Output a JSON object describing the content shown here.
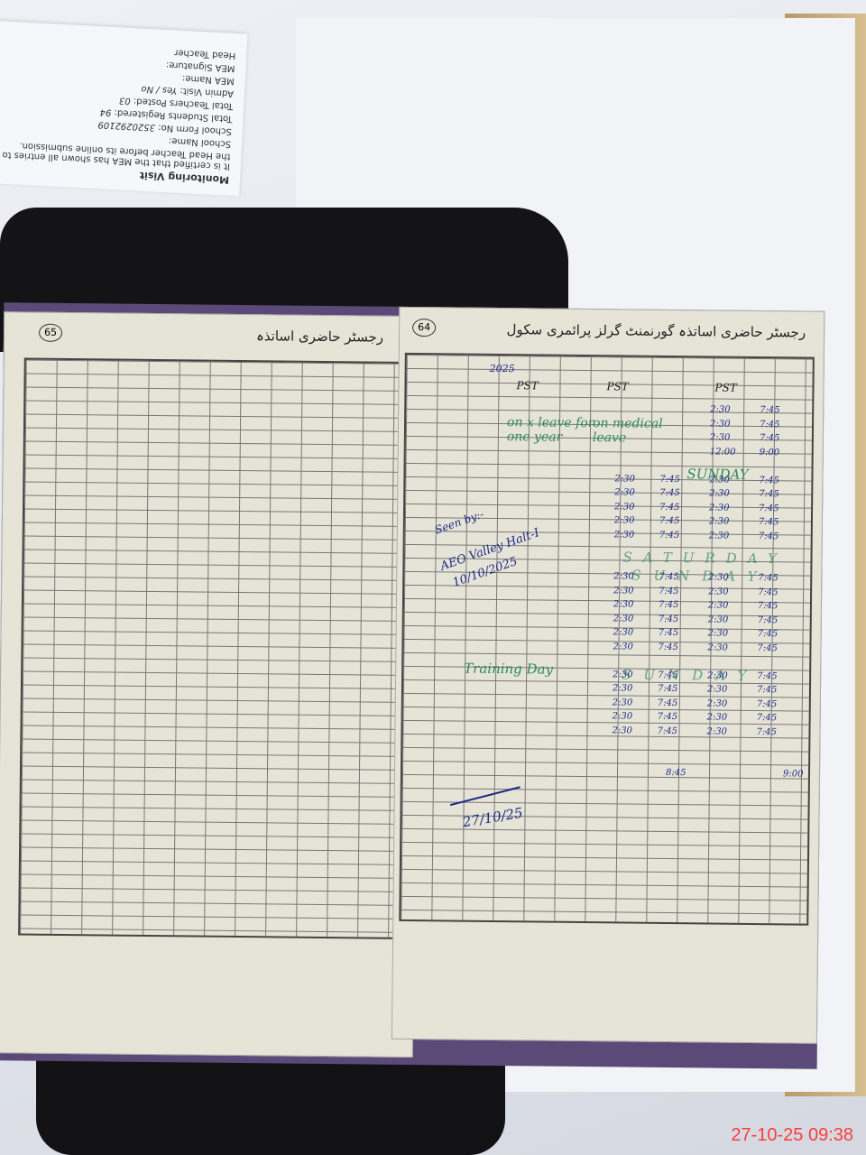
{
  "photo": {
    "timestamp": "27-10-25  09:38",
    "slip": {
      "heading": "Monitoring Visit",
      "certification": "It is certified that the MEA has shown all entries to the Head Teacher before its online submission.",
      "fields": [
        {
          "label": "School Name:",
          "value": ""
        },
        {
          "label": "School Form No:",
          "value": "3520292109"
        },
        {
          "label": "Total Students Registered:",
          "value": "94"
        },
        {
          "label": "Total Teachers Posted:",
          "value": "03"
        },
        {
          "label": "Admin Visit:",
          "value": "Yes / No"
        },
        {
          "label": "MEA Name:",
          "value": ""
        },
        {
          "label": "MEA Signature:",
          "value": ""
        },
        {
          "label": "Head Teacher",
          "value": ""
        }
      ]
    },
    "register": {
      "left_page_number": "65",
      "right_page_number": "64",
      "left_title": "رجسٹر حاضری اساتذہ",
      "right_title": "رجسٹر حاضری اساتذہ گورنمنٹ گرلز پرائمری سکول",
      "year": "2025",
      "designations": [
        "PST",
        "PST",
        "PST"
      ],
      "notes": {
        "on_leave": "on x leave for one year",
        "medical": "on medical leave",
        "sunday": "SUNDAY",
        "saturday": "SATURDAY",
        "training": "Training Day",
        "seen_by": "Seen by:-",
        "aeo": "AEO Valley Halt-I",
        "aeo_date": "10/10/2025",
        "sign_date": "27/10/25"
      },
      "times": [
        "7:45",
        "2:30",
        "9:00",
        "12:00",
        "8:45"
      ]
    }
  }
}
